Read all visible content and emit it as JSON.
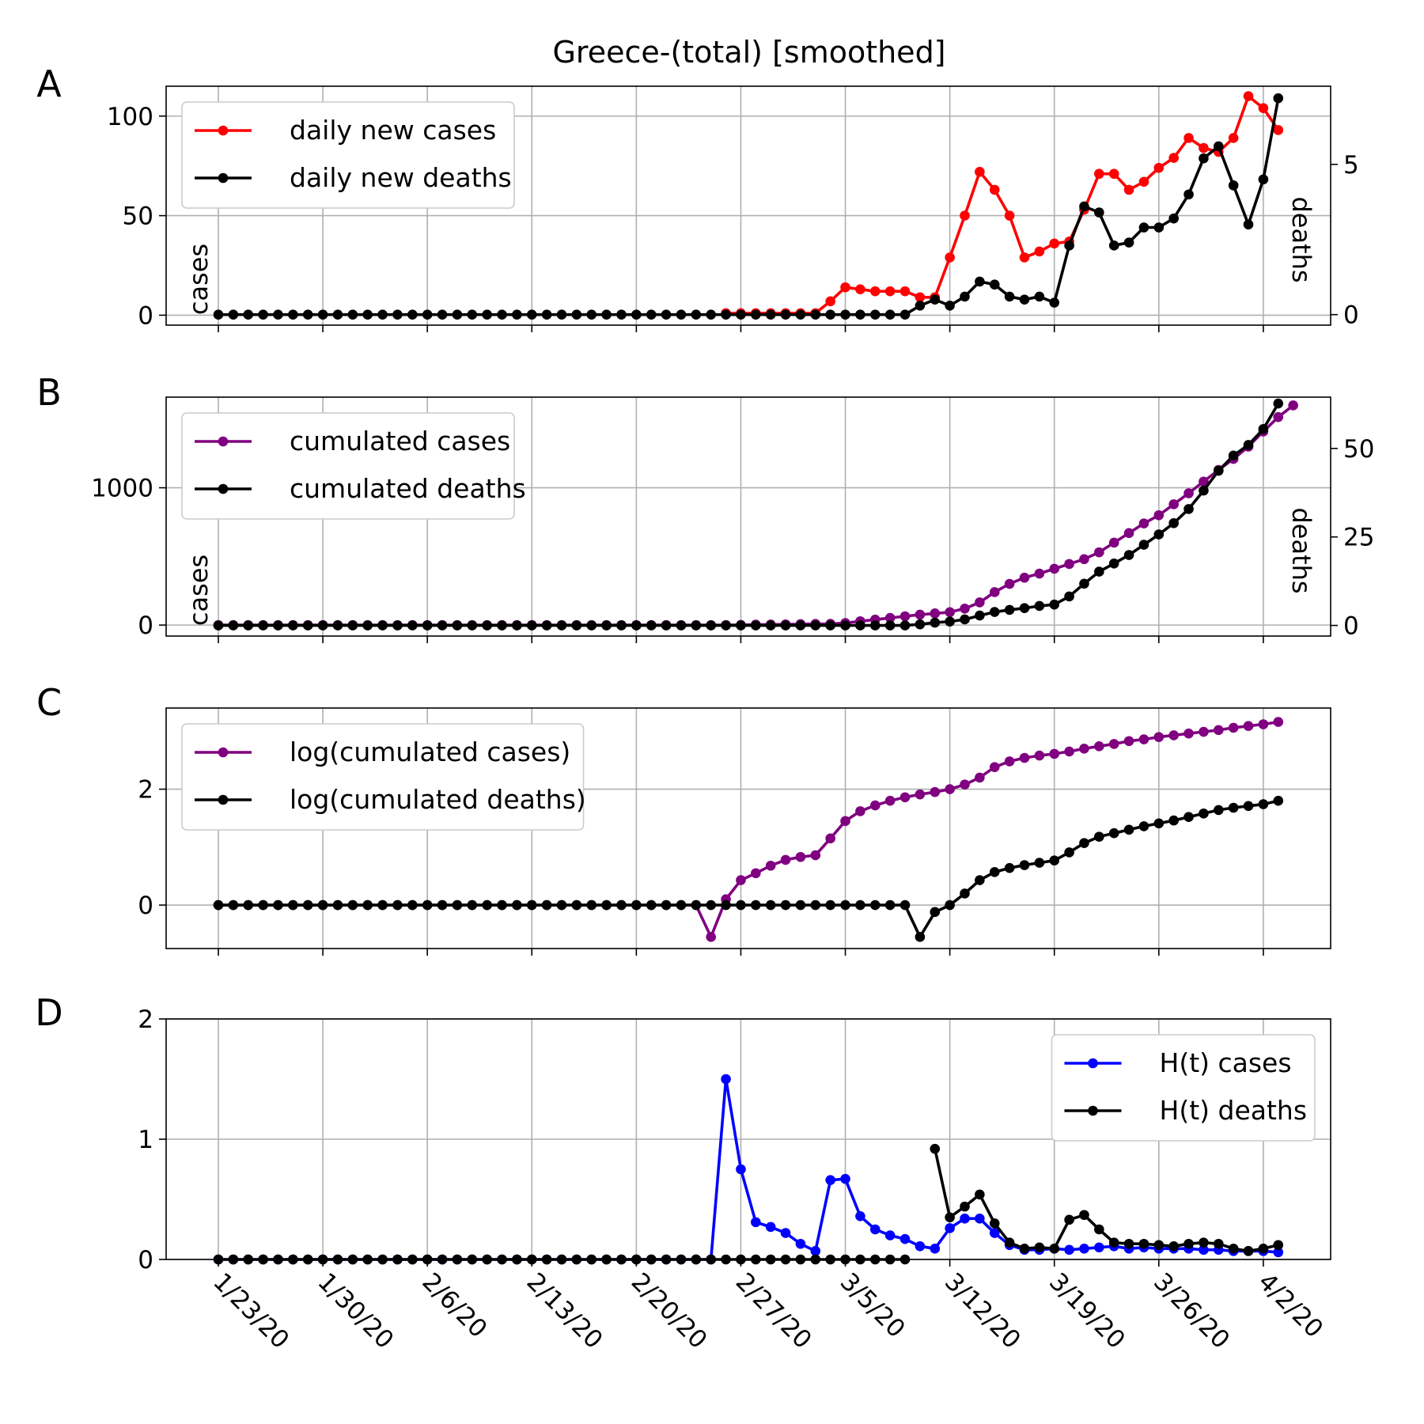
{
  "figure": {
    "title": "Greece-(total) [smoothed]"
  },
  "x_dates": [
    "1/23/20",
    "1/24/20",
    "1/25/20",
    "1/26/20",
    "1/27/20",
    "1/28/20",
    "1/29/20",
    "1/30/20",
    "1/31/20",
    "2/1/20",
    "2/2/20",
    "2/3/20",
    "2/4/20",
    "2/5/20",
    "2/6/20",
    "2/7/20",
    "2/8/20",
    "2/9/20",
    "2/10/20",
    "2/11/20",
    "2/12/20",
    "2/13/20",
    "2/14/20",
    "2/15/20",
    "2/16/20",
    "2/17/20",
    "2/18/20",
    "2/19/20",
    "2/20/20",
    "2/21/20",
    "2/22/20",
    "2/23/20",
    "2/24/20",
    "2/25/20",
    "2/26/20",
    "2/27/20",
    "2/28/20",
    "2/29/20",
    "3/1/20",
    "3/2/20",
    "3/3/20",
    "3/4/20",
    "3/5/20",
    "3/6/20",
    "3/7/20",
    "3/8/20",
    "3/9/20",
    "3/10/20",
    "3/11/20",
    "3/12/20",
    "3/13/20",
    "3/14/20",
    "3/15/20",
    "3/16/20",
    "3/17/20",
    "3/18/20",
    "3/19/20",
    "3/20/20",
    "3/21/20",
    "3/22/20",
    "3/23/20",
    "3/24/20",
    "3/25/20",
    "3/26/20",
    "3/27/20",
    "3/28/20",
    "3/29/20",
    "3/30/20",
    "3/31/20",
    "4/1/20",
    "4/2/20",
    "4/3/20"
  ],
  "x_tick_labels": [
    "1/23/20",
    "1/30/20",
    "2/6/20",
    "2/13/20",
    "2/20/20",
    "2/27/20",
    "3/5/20",
    "3/12/20",
    "3/19/20",
    "3/26/20",
    "4/2/20"
  ],
  "chart_data": [
    {
      "id": "A",
      "panel_letter": "A",
      "type": "line",
      "title": "Greece-(total) [smoothed]",
      "ylabel": "cases",
      "ylabel_right": "deaths",
      "ylim": [
        -5,
        115
      ],
      "ylim_right": [
        -0.35,
        7.6
      ],
      "yticks": [
        0,
        50,
        100
      ],
      "yticks_right": [
        0,
        5
      ],
      "grid": true,
      "legend_position": "top-left",
      "series": [
        {
          "name": "daily new cases",
          "color": "#ff0000",
          "axis": "left",
          "start_index": 34,
          "values": [
            1,
            1,
            1,
            1,
            1,
            1,
            1,
            7,
            14,
            13,
            12,
            12,
            12,
            9,
            9,
            29,
            50,
            72,
            63,
            50,
            29,
            32,
            36,
            37,
            53,
            71,
            71,
            63,
            67,
            74,
            79,
            89,
            84,
            82,
            89,
            110,
            104,
            93
          ]
        },
        {
          "name": "daily new deaths",
          "color": "#000000",
          "axis": "left",
          "start_index": 0,
          "values_right_axis": [
            0,
            0,
            0,
            0,
            0,
            0,
            0,
            0,
            0,
            0,
            0,
            0,
            0,
            0,
            0,
            0,
            0,
            0,
            0,
            0,
            0,
            0,
            0,
            0,
            0,
            0,
            0,
            0,
            0,
            0,
            0,
            0,
            0,
            0,
            0,
            0,
            0,
            0,
            0,
            0,
            0,
            0,
            0,
            0,
            0,
            0,
            0,
            0.3,
            0.5,
            0.3,
            0.6,
            1.1,
            1.0,
            0.6,
            0.5,
            0.6,
            0.4,
            2.3,
            3.6,
            3.4,
            2.3,
            2.4,
            2.9,
            2.9,
            3.2,
            4.0,
            5.2,
            5.6,
            4.3,
            3.0,
            4.5,
            7.2
          ]
        }
      ]
    },
    {
      "id": "B",
      "panel_letter": "B",
      "type": "line",
      "ylabel": "cases",
      "ylabel_right": "deaths",
      "ylim": [
        -80,
        1660
      ],
      "ylim_right": [
        -3,
        64.5
      ],
      "yticks": [
        0,
        1000
      ],
      "yticks_right": [
        0,
        25,
        50
      ],
      "grid": true,
      "legend_position": "top-left",
      "series": [
        {
          "name": "cumulated cases",
          "color": "#800080",
          "axis": "left",
          "start_index": 0,
          "values": [
            0,
            0,
            0,
            0,
            0,
            0,
            0,
            0,
            0,
            0,
            0,
            0,
            0,
            0,
            0,
            0,
            0,
            0,
            0,
            0,
            0,
            0,
            0,
            0,
            0,
            0,
            0,
            0,
            0,
            0,
            0,
            0,
            0,
            0,
            0,
            1,
            3,
            4,
            5,
            7,
            8,
            9,
            15,
            28,
            40,
            52,
            64,
            76,
            85,
            94,
            120,
            165,
            240,
            300,
            345,
            375,
            410,
            445,
            480,
            530,
            600,
            670,
            740,
            800,
            880,
            960,
            1045,
            1130,
            1210,
            1300,
            1410,
            1515,
            1600
          ]
        },
        {
          "name": "cumulated deaths",
          "color": "#000000",
          "axis": "right",
          "start_index": 0,
          "values": [
            0,
            0,
            0,
            0,
            0,
            0,
            0,
            0,
            0,
            0,
            0,
            0,
            0,
            0,
            0,
            0,
            0,
            0,
            0,
            0,
            0,
            0,
            0,
            0,
            0,
            0,
            0,
            0,
            0,
            0,
            0,
            0,
            0,
            0,
            0,
            0,
            0,
            0,
            0,
            0,
            0,
            0,
            0,
            0,
            0,
            0,
            0,
            0.3,
            0.8,
            1.1,
            1.7,
            2.8,
            3.8,
            4.4,
            4.9,
            5.5,
            5.9,
            8.2,
            11.8,
            15.2,
            17.5,
            19.9,
            22.8,
            25.7,
            28.9,
            32.9,
            38.1,
            43.7,
            48.0,
            51.0,
            55.5,
            62.7
          ]
        }
      ]
    },
    {
      "id": "C",
      "panel_letter": "C",
      "type": "line",
      "ylim": [
        -0.75,
        3.4
      ],
      "yticks": [
        0,
        2
      ],
      "grid": true,
      "legend_position": "top-left",
      "series": [
        {
          "name": "log(cumulated cases)",
          "color": "#800080",
          "start_index": 0,
          "values": [
            0,
            0,
            0,
            0,
            0,
            0,
            0,
            0,
            0,
            0,
            0,
            0,
            0,
            0,
            0,
            0,
            0,
            0,
            0,
            0,
            0,
            0,
            0,
            0,
            0,
            0,
            0,
            0,
            0,
            0,
            0,
            0,
            0,
            -0.55,
            0.1,
            0.43,
            0.55,
            0.68,
            0.78,
            0.83,
            0.86,
            1.15,
            1.45,
            1.62,
            1.72,
            1.8,
            1.86,
            1.91,
            1.95,
            2.0,
            2.08,
            2.2,
            2.38,
            2.48,
            2.54,
            2.58,
            2.61,
            2.65,
            2.7,
            2.74,
            2.78,
            2.83,
            2.86,
            2.9,
            2.93,
            2.96,
            2.99,
            3.02,
            3.06,
            3.09,
            3.12,
            3.16
          ]
        },
        {
          "name": "log(cumulated deaths)",
          "color": "#000000",
          "start_index": 0,
          "values": [
            0,
            0,
            0,
            0,
            0,
            0,
            0,
            0,
            0,
            0,
            0,
            0,
            0,
            0,
            0,
            0,
            0,
            0,
            0,
            0,
            0,
            0,
            0,
            0,
            0,
            0,
            0,
            0,
            0,
            0,
            0,
            0,
            0,
            0,
            0,
            0,
            0,
            0,
            0,
            0,
            0,
            0,
            0,
            0,
            0,
            0,
            0,
            -0.55,
            -0.12,
            0.0,
            0.2,
            0.43,
            0.57,
            0.64,
            0.69,
            0.73,
            0.77,
            0.91,
            1.07,
            1.18,
            1.24,
            1.3,
            1.36,
            1.41,
            1.46,
            1.52,
            1.58,
            1.64,
            1.68,
            1.71,
            1.74,
            1.8
          ]
        }
      ]
    },
    {
      "id": "D",
      "panel_letter": "D",
      "type": "line",
      "ylim": [
        0,
        2
      ],
      "yticks": [
        0,
        1,
        2
      ],
      "grid": true,
      "legend_position": "top-right",
      "series": [
        {
          "name": "H(t) cases",
          "color": "#0000ff",
          "start_index": 0,
          "values": [
            0,
            0,
            0,
            0,
            0,
            0,
            0,
            0,
            0,
            0,
            0,
            0,
            0,
            0,
            0,
            0,
            0,
            0,
            0,
            0,
            0,
            0,
            0,
            0,
            0,
            0,
            0,
            0,
            0,
            0,
            0,
            0,
            0,
            0,
            1.5,
            0.75,
            0.31,
            0.27,
            0.22,
            0.13,
            0.07,
            0.66,
            0.67,
            0.36,
            0.25,
            0.2,
            0.17,
            0.11,
            0.09,
            0.26,
            0.34,
            0.34,
            0.22,
            0.12,
            0.08,
            0.08,
            0.09,
            0.08,
            0.09,
            0.1,
            0.11,
            0.09,
            0.1,
            0.09,
            0.09,
            0.09,
            0.08,
            0.08,
            0.07,
            0.07,
            0.07,
            0.06
          ]
        },
        {
          "name": "H(t) deaths",
          "color": "#000000",
          "start_index": 0,
          "values": [
            0,
            0,
            0,
            0,
            0,
            0,
            0,
            0,
            0,
            0,
            0,
            0,
            0,
            0,
            0,
            0,
            0,
            0,
            0,
            0,
            0,
            0,
            0,
            0,
            0,
            0,
            0,
            0,
            0,
            0,
            0,
            0,
            0,
            0,
            0,
            0,
            0,
            0,
            0,
            0,
            0,
            0,
            0,
            0,
            0,
            0,
            0,
            null,
            0.92,
            0.35,
            0.44,
            0.54,
            0.3,
            0.14,
            0.09,
            0.1,
            0.09,
            0.33,
            0.37,
            0.25,
            0.14,
            0.13,
            0.13,
            0.12,
            0.11,
            0.13,
            0.14,
            0.13,
            0.09,
            0.07,
            0.09,
            0.12
          ]
        }
      ]
    }
  ]
}
